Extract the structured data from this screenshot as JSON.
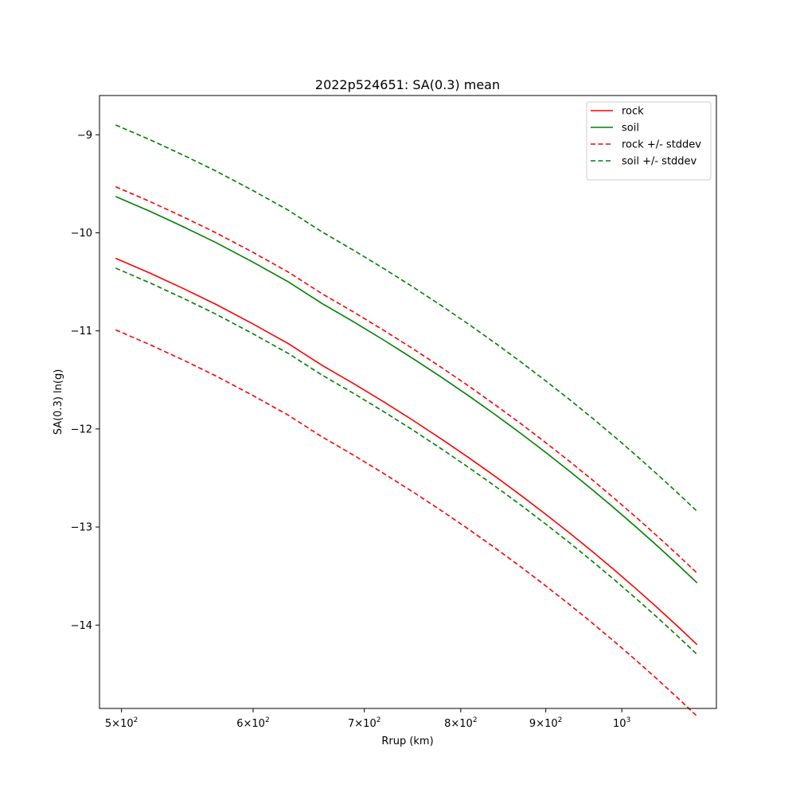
{
  "chart_data": {
    "type": "line",
    "title": "2022p524651: SA(0.3) mean",
    "xlabel": "Rrup (km)",
    "ylabel": "SA(0.3) ln(g)",
    "x_scale": "log",
    "xlim": [
      485,
      1140
    ],
    "ylim": [
      -14.85,
      -8.6
    ],
    "x_ticks": [
      {
        "value": 500,
        "mantissa": "5",
        "exponent": "2"
      },
      {
        "value": 600,
        "mantissa": "6",
        "exponent": "2"
      },
      {
        "value": 700,
        "mantissa": "7",
        "exponent": "2"
      },
      {
        "value": 800,
        "mantissa": "8",
        "exponent": "2"
      },
      {
        "value": 900,
        "mantissa": "9",
        "exponent": "2"
      },
      {
        "value": 1000,
        "mantissa": "",
        "exponent": "3"
      }
    ],
    "x_tick_base": "10",
    "y_ticks": [
      {
        "value": -9,
        "label": "−9"
      },
      {
        "value": -10,
        "label": "−10"
      },
      {
        "value": -11,
        "label": "−11"
      },
      {
        "value": -12,
        "label": "−12"
      },
      {
        "value": -13,
        "label": "−13"
      },
      {
        "value": -14,
        "label": "−14"
      }
    ],
    "grid": false,
    "legend_position": "top-right",
    "x": [
      496,
      520,
      545,
      570,
      600,
      630,
      660,
      690,
      720,
      750,
      780,
      810,
      840,
      870,
      900,
      930,
      960,
      990,
      1020,
      1050,
      1080,
      1110
    ],
    "series": [
      {
        "name": "rock",
        "color": "#ff0000",
        "style": "solid",
        "values": [
          -10.26,
          -10.41,
          -10.57,
          -10.73,
          -10.93,
          -11.13,
          -11.35,
          -11.54,
          -11.73,
          -11.92,
          -12.11,
          -12.3,
          -12.49,
          -12.68,
          -12.87,
          -13.06,
          -13.25,
          -13.44,
          -13.63,
          -13.82,
          -14.01,
          -14.2
        ]
      },
      {
        "name": "soil",
        "color": "#008000",
        "style": "solid",
        "values": [
          -9.63,
          -9.78,
          -9.94,
          -10.1,
          -10.3,
          -10.5,
          -10.72,
          -10.91,
          -11.1,
          -11.29,
          -11.48,
          -11.67,
          -11.86,
          -12.05,
          -12.24,
          -12.43,
          -12.62,
          -12.81,
          -13.0,
          -13.19,
          -13.38,
          -13.57
        ]
      },
      {
        "name": "rock +/- stddev",
        "color": "#ff0000",
        "style": "dashed",
        "values": [
          -9.53,
          -9.68,
          -9.84,
          -10.0,
          -10.2,
          -10.4,
          -10.62,
          -10.81,
          -11.0,
          -11.19,
          -11.38,
          -11.57,
          -11.76,
          -11.95,
          -12.14,
          -12.33,
          -12.52,
          -12.71,
          -12.9,
          -13.09,
          -13.28,
          -13.47
        ]
      },
      {
        "name": "",
        "legend": false,
        "color": "#ff0000",
        "style": "dashed",
        "values": [
          -10.99,
          -11.14,
          -11.3,
          -11.46,
          -11.66,
          -11.86,
          -12.08,
          -12.27,
          -12.46,
          -12.65,
          -12.84,
          -13.03,
          -13.22,
          -13.41,
          -13.6,
          -13.79,
          -13.98,
          -14.17,
          -14.36,
          -14.55,
          -14.74,
          -14.93
        ]
      },
      {
        "name": "soil +/- stddev",
        "color": "#008000",
        "style": "dashed",
        "values": [
          -8.9,
          -9.05,
          -9.21,
          -9.37,
          -9.57,
          -9.77,
          -9.99,
          -10.18,
          -10.37,
          -10.56,
          -10.75,
          -10.94,
          -11.13,
          -11.32,
          -11.51,
          -11.7,
          -11.89,
          -12.08,
          -12.27,
          -12.46,
          -12.65,
          -12.84
        ]
      },
      {
        "name": "",
        "legend": false,
        "color": "#008000",
        "style": "dashed",
        "values": [
          -10.36,
          -10.51,
          -10.67,
          -10.83,
          -11.03,
          -11.23,
          -11.45,
          -11.64,
          -11.83,
          -12.02,
          -12.21,
          -12.4,
          -12.59,
          -12.78,
          -12.97,
          -13.16,
          -13.35,
          -13.54,
          -13.73,
          -13.92,
          -14.11,
          -14.3
        ]
      }
    ]
  }
}
